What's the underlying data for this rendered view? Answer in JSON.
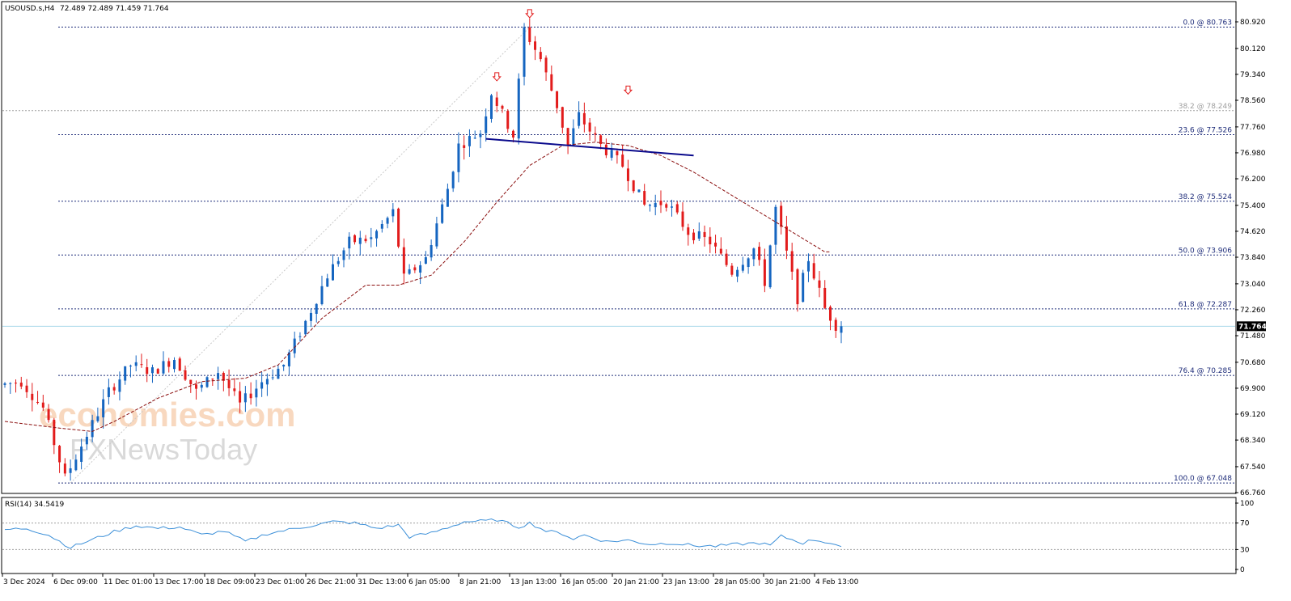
{
  "header": {
    "symbol": "USOUSD.s,H4",
    "ohlc": "72.489 72.489 71.459 71.764"
  },
  "rsi_label": "RSI(14) 34.5419",
  "current_price": "71.764",
  "watermark": {
    "line1": "economies.com",
    "line2": "FXNewsToday"
  },
  "colors": {
    "bull": "#1565c0",
    "bear": "#e21b1b",
    "fib_line": "#1f2d7a",
    "fib_label": "#1f2d7a",
    "fib_382_top": "#9e9e9e",
    "ma": "#8b0f0f",
    "trendline": "#0a0a8c",
    "rsi": "#3b8fd8",
    "price_line": "#a8d8ea",
    "price_box": "#000000",
    "arrow": "#e21b1b"
  },
  "chart_data": [
    {
      "type": "candlestick",
      "title": "USOUSD.s,H4",
      "ylim": [
        66.76,
        80.92
      ],
      "y_ticks": [
        "80.920",
        "80.120",
        "79.340",
        "78.560",
        "77.760",
        "76.980",
        "76.200",
        "75.400",
        "74.620",
        "73.840",
        "73.040",
        "72.260",
        "71.480",
        "70.680",
        "69.900",
        "69.120",
        "68.340",
        "67.540",
        "66.760"
      ],
      "x_ticks": [
        "3 Dec 2024",
        "6 Dec 09:00",
        "11 Dec 01:00",
        "13 Dec 17:00",
        "18 Dec 09:00",
        "23 Dec 01:00",
        "26 Dec 21:00",
        "31 Dec 13:00",
        "6 Jan 05:00",
        "8 Jan 21:00",
        "13 Jan 13:00",
        "16 Jan 05:00",
        "20 Jan 21:00",
        "23 Jan 13:00",
        "28 Jan 05:00",
        "30 Jan 21:00",
        "4 Feb 13:00"
      ],
      "price_path": [
        [
          0,
          70.0
        ],
        [
          4,
          70.1
        ],
        [
          8,
          69.3
        ],
        [
          12,
          67.2
        ],
        [
          16,
          68.5
        ],
        [
          20,
          69.8
        ],
        [
          24,
          70.6
        ],
        [
          28,
          70.4
        ],
        [
          32,
          70.8
        ],
        [
          36,
          69.8
        ],
        [
          40,
          70.4
        ],
        [
          44,
          69.4
        ],
        [
          48,
          70.1
        ],
        [
          52,
          70.6
        ],
        [
          56,
          71.9
        ],
        [
          60,
          73.3
        ],
        [
          64,
          74.3
        ],
        [
          68,
          74.4
        ],
        [
          72,
          75.2
        ],
        [
          74,
          73.2
        ],
        [
          78,
          73.8
        ],
        [
          82,
          75.9
        ],
        [
          84,
          77.2
        ],
        [
          88,
          77.6
        ],
        [
          90,
          78.8
        ],
        [
          94,
          77.5
        ],
        [
          96,
          80.7
        ],
        [
          99,
          79.8
        ],
        [
          102,
          78.4
        ],
        [
          104,
          77.2
        ],
        [
          106,
          78.1
        ],
        [
          110,
          77.2
        ],
        [
          114,
          76.6
        ],
        [
          118,
          75.4
        ],
        [
          122,
          75.5
        ],
        [
          126,
          74.6
        ],
        [
          130,
          74.3
        ],
        [
          134,
          73.4
        ],
        [
          138,
          74.1
        ],
        [
          140,
          73.1
        ],
        [
          142,
          75.3
        ],
        [
          146,
          72.6
        ],
        [
          148,
          73.8
        ],
        [
          151,
          72.3
        ],
        [
          153,
          71.8
        ]
      ],
      "ma_path": [
        [
          0,
          68.9
        ],
        [
          10,
          68.7
        ],
        [
          16,
          68.6
        ],
        [
          20,
          68.9
        ],
        [
          28,
          69.6
        ],
        [
          36,
          70.1
        ],
        [
          44,
          70.2
        ],
        [
          50,
          70.6
        ],
        [
          58,
          72.0
        ],
        [
          66,
          73.0
        ],
        [
          72,
          73.0
        ],
        [
          78,
          73.3
        ],
        [
          84,
          74.3
        ],
        [
          90,
          75.5
        ],
        [
          96,
          76.6
        ],
        [
          102,
          77.2
        ],
        [
          108,
          77.3
        ],
        [
          114,
          77.2
        ],
        [
          120,
          76.9
        ],
        [
          126,
          76.4
        ],
        [
          132,
          75.8
        ],
        [
          138,
          75.2
        ],
        [
          144,
          74.6
        ],
        [
          150,
          74.0
        ]
      ],
      "fib_levels": [
        {
          "label": "0.0 @ 80.763",
          "value": 80.763
        },
        {
          "label": "23.6 @ 77.526",
          "value": 77.526
        },
        {
          "label": "38.2 @ 78.249",
          "value": 78.249
        },
        {
          "label": "38.2 @ 75.524",
          "value": 75.524
        },
        {
          "label": "50.0 @ 73.906",
          "value": 73.906
        },
        {
          "label": "61.8 @ 72.287",
          "value": 72.287
        },
        {
          "label": "76.4 @ 70.285",
          "value": 70.285
        },
        {
          "label": "100.0 @ 67.048",
          "value": 67.048
        }
      ],
      "last_price": 71.764,
      "trendline": [
        [
          88,
          77.4
        ],
        [
          126,
          76.9
        ]
      ],
      "peak_markers": [
        [
          90,
          79.0
        ],
        [
          96,
          80.9
        ],
        [
          114,
          78.6
        ]
      ],
      "candle_count": 154
    },
    {
      "type": "line",
      "title": "RSI(14) 34.5419",
      "ylim": [
        0,
        100
      ],
      "y_ticks": [
        "100",
        "70",
        "30",
        "0"
      ],
      "levels": [
        70,
        30
      ],
      "rsi_path": [
        [
          0,
          60
        ],
        [
          4,
          62
        ],
        [
          8,
          52
        ],
        [
          12,
          33
        ],
        [
          16,
          45
        ],
        [
          20,
          57
        ],
        [
          24,
          66
        ],
        [
          28,
          62
        ],
        [
          32,
          64
        ],
        [
          36,
          52
        ],
        [
          40,
          58
        ],
        [
          44,
          42
        ],
        [
          48,
          54
        ],
        [
          52,
          60
        ],
        [
          56,
          66
        ],
        [
          60,
          72
        ],
        [
          64,
          70
        ],
        [
          68,
          62
        ],
        [
          72,
          67
        ],
        [
          74,
          49
        ],
        [
          78,
          55
        ],
        [
          82,
          66
        ],
        [
          84,
          72
        ],
        [
          88,
          73
        ],
        [
          90,
          75
        ],
        [
          94,
          64
        ],
        [
          96,
          70
        ],
        [
          99,
          58
        ],
        [
          102,
          54
        ],
        [
          104,
          46
        ],
        [
          106,
          52
        ],
        [
          110,
          42
        ],
        [
          114,
          44
        ],
        [
          118,
          38
        ],
        [
          122,
          40
        ],
        [
          126,
          36
        ],
        [
          130,
          35
        ],
        [
          134,
          38
        ],
        [
          138,
          40
        ],
        [
          140,
          36
        ],
        [
          142,
          50
        ],
        [
          146,
          40
        ],
        [
          148,
          45
        ],
        [
          151,
          40
        ],
        [
          153,
          34.5
        ]
      ]
    }
  ]
}
